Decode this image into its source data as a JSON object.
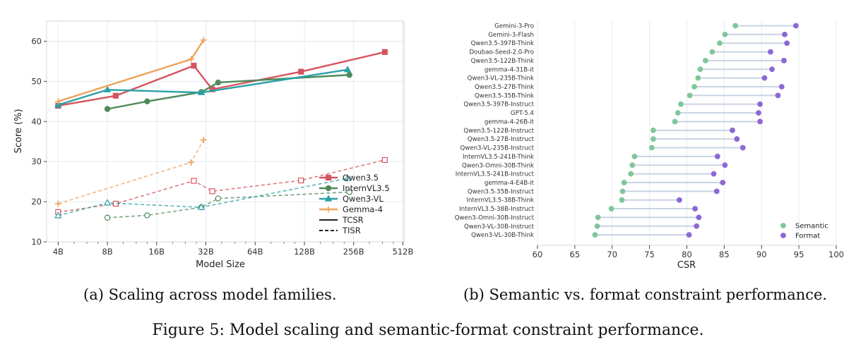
{
  "captions": {
    "a": "(a) Scaling across model families.",
    "b": "(b) Semantic vs. format constraint performance.",
    "figure": "Figure 5: Model scaling and semantic-format constraint performance."
  },
  "chart_data": [
    {
      "type": "line",
      "xlabel": "Model Size",
      "ylabel": "Score (%)",
      "xscale": "log2",
      "xlim": [
        3.4,
        520
      ],
      "ylim": [
        10,
        65
      ],
      "xticks": [
        4,
        8,
        16,
        32,
        64,
        128,
        256,
        512
      ],
      "xtick_labels": [
        "4B",
        "8B",
        "16B",
        "32B",
        "64B",
        "128B",
        "256B",
        "512B"
      ],
      "yticks": [
        10,
        20,
        30,
        40,
        50,
        60
      ],
      "grid": true,
      "legend_position": "center-right",
      "series": [
        {
          "name": "Qwen3.5",
          "metric": "TCSR",
          "color": "#d6545e",
          "marker": "square",
          "x": [
            4,
            9,
            27,
            35,
            122,
            397
          ],
          "y": [
            43.9,
            46.4,
            53.9,
            48.0,
            52.4,
            57.3
          ]
        },
        {
          "name": "Qwen3.5",
          "metric": "TISR",
          "color": "#d6545e",
          "marker": "square",
          "x": [
            4,
            9,
            27,
            35,
            122,
            397
          ],
          "y": [
            17.4,
            19.5,
            25.2,
            22.6,
            25.3,
            30.4
          ]
        },
        {
          "name": "InternVL3.5",
          "metric": "TCSR",
          "color": "#4e8a5a",
          "marker": "circle",
          "x": [
            8,
            14,
            30,
            38,
            241
          ],
          "y": [
            43.1,
            45.0,
            47.3,
            49.7,
            51.6
          ]
        },
        {
          "name": "InternVL3.5",
          "metric": "TISR",
          "color": "#4e8a5a",
          "marker": "circle",
          "x": [
            8,
            14,
            30,
            38,
            241
          ],
          "y": [
            16.0,
            16.6,
            18.6,
            20.8,
            22.4
          ]
        },
        {
          "name": "Qwen3-VL",
          "metric": "TCSR",
          "color": "#2aa1a8",
          "marker": "triangle",
          "x": [
            4,
            8,
            30,
            235
          ],
          "y": [
            44.1,
            47.9,
            47.2,
            52.9
          ]
        },
        {
          "name": "Qwen3-VL",
          "metric": "TISR",
          "color": "#2aa1a8",
          "marker": "triangle",
          "x": [
            4,
            8,
            30,
            235
          ],
          "y": [
            16.5,
            19.7,
            18.6,
            25.8
          ]
        },
        {
          "name": "Gemma-4",
          "metric": "TCSR",
          "color": "#eea25a",
          "marker": "plus",
          "x": [
            4,
            26,
            31
          ],
          "y": [
            45.0,
            55.5,
            60.3
          ]
        },
        {
          "name": "Gemma-4",
          "metric": "TISR",
          "color": "#eea25a",
          "marker": "plus",
          "x": [
            4,
            26,
            31
          ],
          "y": [
            19.5,
            29.8,
            35.4
          ]
        }
      ],
      "legend": [
        {
          "label": "Qwen3.5",
          "color": "#d6545e",
          "marker": "square"
        },
        {
          "label": "InternVL3.5",
          "color": "#4e8a5a",
          "marker": "circle"
        },
        {
          "label": "Qwen3-VL",
          "color": "#2aa1a8",
          "marker": "triangle"
        },
        {
          "label": "Gemma-4",
          "color": "#eea25a",
          "marker": "plus"
        },
        {
          "label": "TCSR",
          "color": "#222222",
          "style": "solid"
        },
        {
          "label": "TISR",
          "color": "#222222",
          "style": "dashed"
        }
      ]
    },
    {
      "type": "dumbbell",
      "xlabel": "CSR",
      "xlim": [
        60,
        100
      ],
      "xticks": [
        60,
        65,
        70,
        75,
        80,
        85,
        90,
        95,
        100
      ],
      "grid": true,
      "legend_position": "lower-right",
      "colors": {
        "semantic": "#7fc79a",
        "format": "#8c68d4",
        "connector": "#c9d3e3"
      },
      "legend": [
        {
          "label": "Semantic",
          "color": "#7fc79a"
        },
        {
          "label": "Format",
          "color": "#8c68d4"
        }
      ],
      "categories": [
        "Gemini-3-Pro",
        "Gemini-3-Flash",
        "Qwen3.5-397B-Think",
        "Doubao-Seed-2.0-Pro",
        "Qwen3.5-122B-Think",
        "gemma-4-31B-it",
        "Qwen3-VL-235B-Think",
        "Qwen3.5-27B-Think",
        "Qwen3.5-35B-Think",
        "Qwen3.5-397B-Instruct",
        "GPT-5.4",
        "gemma-4-26B-it",
        "Qwen3.5-122B-Instruct",
        "Qwen3.5-27B-Instruct",
        "Qwen3-VL-235B-Instruct",
        "InternVL3.5-241B-Think",
        "Qwen3-Omni-30B-Think",
        "InternVL3.5-241B-Instruct",
        "gemma-4-E4B-it",
        "Qwen3.5-35B-Instruct",
        "InternVL3.5-38B-Think",
        "InternVL3.5-38B-Instruct",
        "Qwen3-Omni-30B-Instruct",
        "Qwen3-VL-30B-Instruct",
        "Qwen3-VL-30B-Think"
      ],
      "semantic": [
        86.5,
        85.1,
        84.4,
        83.4,
        82.5,
        81.8,
        81.5,
        81.0,
        80.4,
        79.2,
        78.8,
        78.4,
        75.5,
        75.5,
        75.3,
        73.0,
        72.7,
        72.5,
        71.6,
        71.4,
        71.3,
        69.9,
        68.1,
        68.0,
        67.7
      ],
      "format": [
        94.6,
        93.1,
        93.4,
        91.2,
        93.0,
        91.4,
        90.4,
        92.7,
        92.2,
        89.8,
        89.6,
        89.8,
        86.1,
        86.7,
        87.5,
        84.1,
        85.1,
        83.6,
        84.8,
        84.0,
        79.0,
        81.1,
        81.6,
        81.3,
        80.3
      ]
    }
  ]
}
